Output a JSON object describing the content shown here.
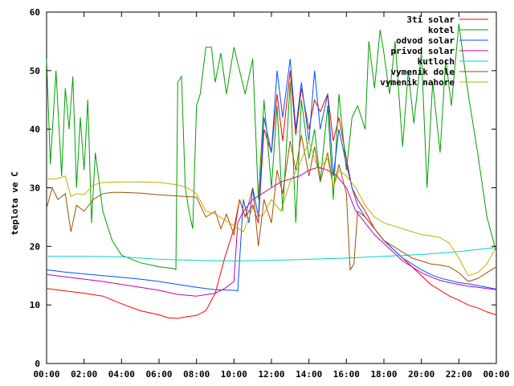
{
  "chart_data": {
    "type": "line",
    "title": "",
    "xlabel": "",
    "ylabel": "teplota ve C",
    "xlim": [
      0,
      24
    ],
    "ylim": [
      0,
      60
    ],
    "grid": false,
    "legend_position": "top-right",
    "x_ticks": [
      "00:00",
      "02:00",
      "04:00",
      "06:00",
      "08:00",
      "10:00",
      "12:00",
      "14:00",
      "16:00",
      "18:00",
      "20:00",
      "22:00",
      "00:00"
    ],
    "y_ticks": [
      "0",
      "10",
      "20",
      "30",
      "40",
      "50",
      "60"
    ],
    "series": [
      {
        "name": "3ti solar",
        "color": "#ff0000",
        "x": [
          0,
          1,
          2,
          3,
          4,
          5,
          6,
          6.5,
          7,
          7.5,
          8,
          8.5,
          9,
          9.5,
          10,
          10.3,
          10.6,
          11,
          11.3,
          11.6,
          12,
          12.3,
          12.6,
          13,
          13.3,
          13.6,
          14,
          14.3,
          14.6,
          15,
          15.3,
          15.6,
          16,
          16.3,
          16.6,
          17,
          17.5,
          18,
          18.5,
          19,
          19.5,
          20,
          20.5,
          21,
          21.5,
          22,
          22.5,
          23,
          23.5,
          24
        ],
        "y": [
          12.8,
          12.4,
          12,
          11.5,
          10.2,
          9,
          8.3,
          7.8,
          7.7,
          8,
          8.2,
          9,
          12,
          18,
          23,
          28,
          25,
          27,
          24,
          40,
          36,
          46,
          38,
          50,
          39,
          47,
          40,
          45,
          43,
          46,
          38,
          42,
          35,
          30,
          28,
          26,
          23,
          21,
          19.5,
          18,
          16.5,
          15,
          13.5,
          12.5,
          11.5,
          10.8,
          10,
          9.5,
          8.8,
          8.3
        ]
      },
      {
        "name": "kotel",
        "color": "#00a000",
        "x": [
          0,
          0.2,
          0.5,
          0.8,
          1,
          1.2,
          1.4,
          1.6,
          1.8,
          2,
          2.2,
          2.4,
          2.6,
          3,
          3.5,
          4,
          5,
          6,
          6.8,
          6.9,
          7,
          7.2,
          7.4,
          7.6,
          7.8,
          8,
          8.2,
          8.5,
          8.8,
          9,
          9.3,
          9.6,
          10,
          10.3,
          10.6,
          11,
          11.3,
          11.6,
          12,
          12.3,
          12.6,
          13,
          13.3,
          13.6,
          14,
          14.3,
          14.6,
          15,
          15.3,
          15.6,
          16,
          16.3,
          16.6,
          17,
          17.2,
          17.5,
          17.8,
          18,
          18.3,
          18.6,
          19,
          19.3,
          19.6,
          20,
          20.3,
          20.6,
          21,
          21.3,
          21.6,
          22,
          22.5,
          23,
          23.5,
          24
        ],
        "y": [
          52,
          34,
          50,
          32,
          47,
          40,
          49,
          30,
          42,
          33,
          45,
          24,
          36,
          26,
          21,
          18.5,
          17.2,
          16.5,
          16.2,
          16,
          48,
          49,
          30,
          26,
          23,
          44,
          46,
          54,
          54,
          48,
          53,
          46,
          54,
          50,
          46,
          52,
          28,
          45,
          30,
          44,
          26,
          48,
          24,
          45,
          35,
          40,
          31,
          44,
          28,
          46,
          33,
          42,
          44,
          40,
          55,
          47,
          57,
          53,
          46,
          55,
          37,
          50,
          41,
          53,
          30,
          48,
          36,
          52,
          44,
          58,
          46,
          36,
          25,
          19
        ]
      },
      {
        "name": "odvod solar",
        "color": "#0050ff",
        "x": [
          0,
          1,
          2,
          3,
          4,
          5,
          6,
          7,
          8,
          9,
          10,
          10.2,
          10.5,
          10.8,
          11,
          11.3,
          11.6,
          12,
          12.3,
          12.6,
          13,
          13.3,
          13.6,
          14,
          14.3,
          14.6,
          15,
          15.3,
          15.6,
          16,
          16.3,
          16.6,
          17,
          17.5,
          18,
          18.5,
          19,
          19.5,
          20,
          20.5,
          21,
          21.5,
          22,
          22.5,
          23,
          23.5,
          24
        ],
        "y": [
          16,
          15.6,
          15.3,
          15,
          14.7,
          14.4,
          14,
          13.5,
          13,
          12.6,
          12.5,
          12.4,
          28,
          24,
          30,
          25,
          42,
          36,
          50,
          42,
          52,
          40,
          48,
          38,
          50,
          40,
          46,
          32,
          40,
          34,
          30,
          27,
          25,
          23,
          21,
          19.5,
          18,
          17,
          16,
          15.2,
          14.6,
          14.2,
          13.8,
          13.6,
          13.3,
          13,
          12.7
        ]
      },
      {
        "name": "privod solar",
        "color": "#c000c0",
        "x": [
          0,
          1,
          2,
          3,
          4,
          5,
          6,
          7,
          8,
          9,
          9.5,
          10,
          10.2,
          10.5,
          11,
          11.5,
          12,
          12.5,
          13,
          13.5,
          14,
          14.5,
          15,
          15.5,
          16,
          16.5,
          17,
          17.5,
          18,
          18.5,
          19,
          19.5,
          20,
          20.5,
          21,
          21.5,
          22,
          22.5,
          23,
          23.5,
          24
        ],
        "y": [
          15.2,
          14.8,
          14.4,
          14,
          13.5,
          13,
          12.5,
          11.8,
          11.5,
          12,
          12.8,
          14,
          24,
          26,
          28,
          29,
          30,
          31,
          31.5,
          32,
          33,
          33.5,
          33,
          32,
          30,
          26,
          24,
          22,
          20.5,
          19,
          17.5,
          16.5,
          15.5,
          14.8,
          14.2,
          13.8,
          13.5,
          13.2,
          13,
          12.8,
          12.6
        ]
      },
      {
        "name": "kutloch",
        "color": "#00d0d0",
        "x": [
          0,
          2,
          4,
          6,
          8,
          10,
          12,
          14,
          16,
          18,
          20,
          22,
          24
        ],
        "y": [
          18.3,
          18.3,
          18.2,
          17.8,
          17.6,
          17.5,
          17.6,
          17.8,
          18,
          18.3,
          18.6,
          19.1,
          19.8
        ]
      },
      {
        "name": "vymenik dole",
        "color": "#a05000",
        "x": [
          0,
          0.3,
          0.6,
          1,
          1.3,
          1.6,
          2,
          2.5,
          3,
          3.5,
          4,
          5,
          6,
          7,
          8,
          8.5,
          9,
          9.3,
          9.6,
          10,
          10.3,
          10.6,
          11,
          11.3,
          11.6,
          12,
          12.3,
          12.6,
          13,
          13.3,
          13.6,
          14,
          14.3,
          14.6,
          15,
          15.3,
          15.6,
          16,
          16.2,
          16.4,
          16.6,
          17,
          17.5,
          18,
          18.5,
          19,
          19.5,
          20,
          20.5,
          21,
          21.5,
          22,
          22.5,
          23,
          23.5,
          24
        ],
        "y": [
          26.5,
          30,
          28,
          29,
          22.5,
          27,
          26,
          28,
          29,
          29.2,
          29.2,
          29.1,
          28.8,
          28.6,
          28.4,
          25,
          26,
          23,
          25.5,
          22,
          28,
          25,
          30,
          20,
          28,
          24,
          33,
          29,
          38,
          33,
          39,
          32,
          37,
          31,
          36,
          30,
          34,
          29,
          16,
          17,
          26,
          25,
          23,
          21,
          20,
          19,
          18,
          17.5,
          17,
          16.8,
          16.5,
          15.5,
          14,
          14.5,
          15.5,
          16.5
        ]
      },
      {
        "name": "vymenik nahore",
        "color": "#c0b000",
        "x": [
          0,
          0.5,
          1,
          1.3,
          1.6,
          2,
          2.5,
          3,
          4,
          5,
          6,
          6.5,
          7,
          7.5,
          8,
          8.5,
          9,
          9.5,
          10,
          10.5,
          11,
          11.5,
          12,
          12.5,
          13,
          13.5,
          14,
          14.5,
          15,
          15.3,
          15.6,
          16,
          16.5,
          17,
          17.5,
          18,
          18.5,
          19,
          19.5,
          20,
          20.5,
          21,
          21.5,
          22,
          22.5,
          23,
          23.5,
          24
        ],
        "y": [
          31.5,
          31.5,
          32,
          28.5,
          29,
          28.8,
          30.5,
          30.9,
          31,
          31,
          30.9,
          30.7,
          30.5,
          30,
          29,
          26,
          25.5,
          24.5,
          23.5,
          22.5,
          26.5,
          25,
          28,
          26,
          31,
          34,
          38,
          33,
          35,
          30,
          33,
          32,
          30,
          27,
          25,
          24,
          23.5,
          23,
          22.5,
          22,
          21.8,
          21.5,
          20.5,
          18,
          15,
          15.5,
          17,
          20
        ]
      }
    ]
  }
}
